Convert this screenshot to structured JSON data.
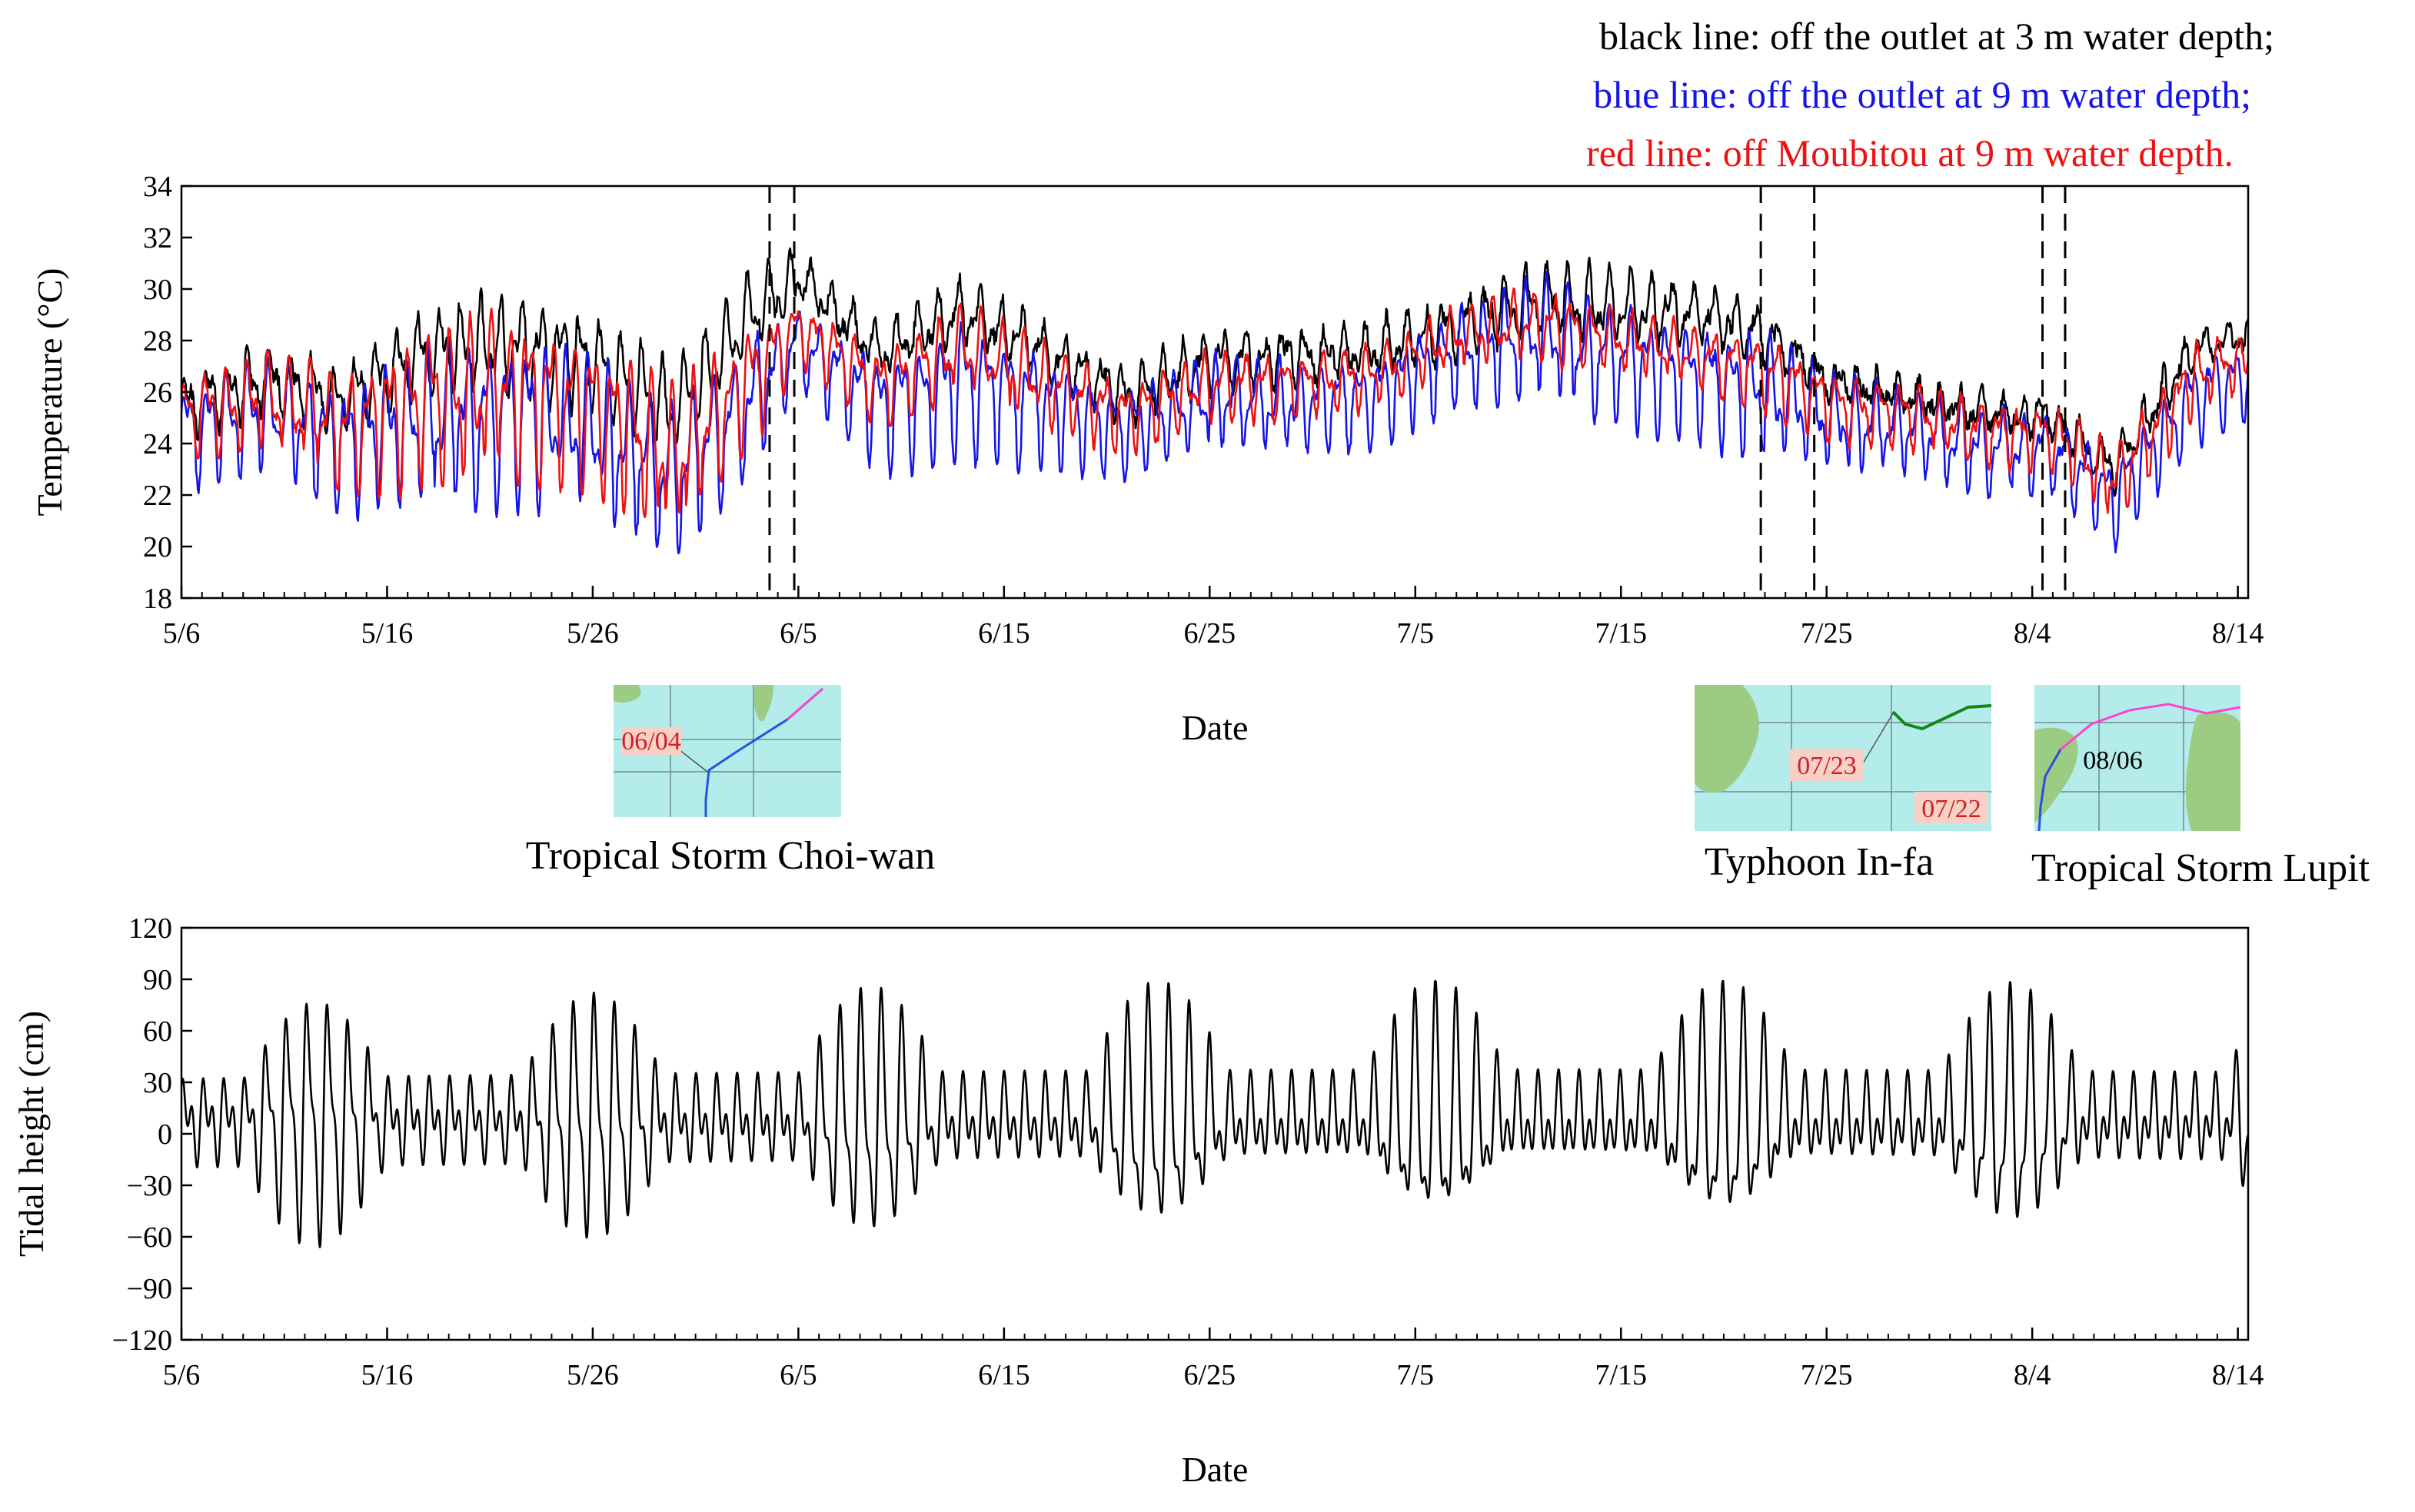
{
  "legend": {
    "black": "black line: off the outlet at 3 m water depth;",
    "blue": "blue line: off the outlet at 9 m water depth;",
    "red": "red line: off Moubitou at 9 m water depth."
  },
  "colors": {
    "black": "#000000",
    "blue": "#1515e6",
    "red": "#ee1111",
    "map_sea": "#b4ecec",
    "map_land": "#9ccc84"
  },
  "storms": [
    {
      "name": "Tropical Storm Choi-wan",
      "map_dates": [
        "06/04"
      ]
    },
    {
      "name": "Typhoon In-fa",
      "map_dates": [
        "07/23",
        "07/22"
      ]
    },
    {
      "name": "Tropical Storm Lupit",
      "map_dates": [
        "08/06"
      ]
    }
  ],
  "chart_data": [
    {
      "type": "line",
      "title": "",
      "xlabel": "Date",
      "ylabel": "Temperature (°C)",
      "ylim": [
        18,
        34
      ],
      "yticks": [
        18,
        20,
        22,
        24,
        26,
        28,
        30,
        32,
        34
      ],
      "xlim_days": [
        0,
        100.5
      ],
      "xtick_labels": [
        "5/6",
        "5/16",
        "5/26",
        "6/5",
        "6/15",
        "6/25",
        "7/5",
        "7/15",
        "7/25",
        "8/4",
        "8/14"
      ],
      "xtick_days": [
        0,
        10,
        20,
        30,
        40,
        50,
        60,
        70,
        80,
        90,
        100
      ],
      "storm_markers_days": [
        28.6,
        29.8,
        76.8,
        79.4,
        90.5,
        91.6
      ],
      "daily_mean_x": [
        0,
        4,
        8,
        12,
        16,
        20,
        24,
        28,
        30,
        34,
        38,
        42,
        46,
        50,
        54,
        58,
        62,
        66,
        70,
        74,
        77,
        80,
        84,
        88,
        91,
        94,
        96,
        98,
        100
      ],
      "series": [
        {
          "name": "black line: off the outlet at 3 m water depth",
          "color": "#000000",
          "mean": [
            25.5,
            26.5,
            25.8,
            27.6,
            27.8,
            27.2,
            25.3,
            29.3,
            30.5,
            27.5,
            29.2,
            27.6,
            25.8,
            27.2,
            27.4,
            27.6,
            28.6,
            29.6,
            29.3,
            29.0,
            28.3,
            26.5,
            25.8,
            25.2,
            25.0,
            23.0,
            25.5,
            27.8,
            28.2
          ],
          "amplitude": [
            1.3,
            1.4,
            1.3,
            1.8,
            2.0,
            2.0,
            1.8,
            1.9,
            1.0,
            1.0,
            1.3,
            1.2,
            1.1,
            1.2,
            1.1,
            1.1,
            1.3,
            1.5,
            1.5,
            1.2,
            1.2,
            0.7,
            0.7,
            0.8,
            0.8,
            1.0,
            0.9,
            0.8,
            0.6
          ]
        },
        {
          "name": "blue line: off the outlet at 9 m water depth",
          "color": "#1515e6",
          "mean": [
            24.6,
            25.3,
            24.2,
            25.0,
            25.3,
            24.6,
            22.8,
            26.0,
            28.0,
            25.4,
            26.6,
            25.6,
            24.7,
            25.8,
            25.6,
            25.9,
            27.6,
            28.3,
            27.4,
            26.6,
            26.2,
            25.0,
            24.6,
            23.8,
            23.8,
            22.0,
            24.0,
            26.0,
            26.6
          ],
          "amplitude": [
            1.6,
            1.8,
            2.0,
            2.5,
            2.6,
            2.5,
            2.5,
            2.0,
            1.2,
            1.8,
            2.2,
            1.8,
            1.4,
            1.5,
            1.4,
            1.4,
            1.6,
            2.0,
            2.0,
            1.8,
            2.0,
            1.6,
            1.4,
            1.4,
            1.2,
            1.4,
            1.4,
            1.4,
            1.2
          ]
        },
        {
          "name": "red line: off Moubitou at 9 m water depth",
          "color": "#ee1111",
          "mean": [
            25.2,
            25.8,
            24.8,
            25.8,
            26.3,
            25.6,
            23.6,
            26.8,
            28.6,
            26.3,
            27.8,
            26.4,
            25.2,
            26.4,
            26.4,
            26.7,
            28.2,
            28.8,
            28.1,
            27.4,
            27.0,
            25.7,
            25.2,
            24.5,
            24.4,
            22.6,
            24.6,
            26.8,
            27.2
          ],
          "amplitude": [
            1.3,
            1.6,
            1.9,
            2.5,
            2.6,
            2.4,
            2.4,
            1.8,
            1.0,
            1.2,
            1.5,
            1.4,
            1.1,
            1.1,
            1.0,
            1.0,
            1.0,
            1.1,
            1.0,
            1.0,
            1.3,
            1.1,
            1.0,
            1.0,
            1.0,
            1.2,
            1.2,
            1.1,
            0.9
          ]
        }
      ]
    },
    {
      "type": "line",
      "title": "",
      "xlabel": "Date",
      "ylabel": "Tidal height (cm)",
      "ylim": [
        -120,
        120
      ],
      "yticks": [
        -120,
        -90,
        -60,
        -30,
        0,
        30,
        60,
        90,
        120
      ],
      "xlim_days": [
        0,
        100.5
      ],
      "xtick_labels": [
        "5/6",
        "5/16",
        "5/26",
        "6/5",
        "6/15",
        "6/25",
        "7/5",
        "7/15",
        "7/25",
        "8/4",
        "8/14"
      ],
      "xtick_days": [
        0,
        10,
        20,
        30,
        40,
        50,
        60,
        70,
        80,
        90,
        100
      ],
      "series": [
        {
          "name": "Tidal height",
          "color": "#000000",
          "tidal_constituents": {
            "diurnal_amplitude_cm": 47,
            "semidiurnal_amplitude_cm": 24,
            "spring_neap_period_days": 13.8,
            "spring_days": [
              6.5,
              20.0,
              33.5,
              47.5,
              61.0,
              75.0,
              89.0
            ],
            "max_spring_range_cm": [
              -70,
              88
            ]
          }
        }
      ]
    }
  ]
}
